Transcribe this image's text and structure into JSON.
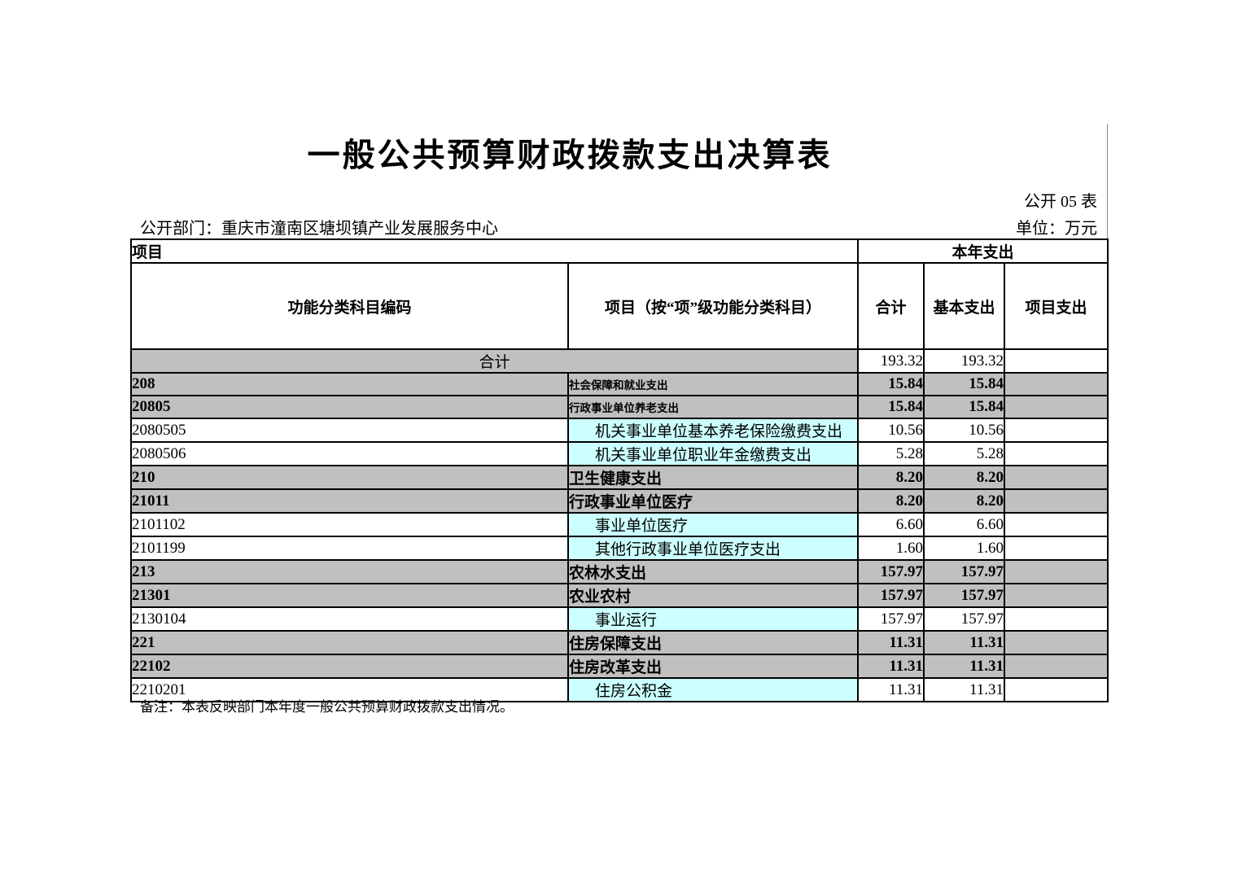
{
  "title": "一般公共预算财政拨款支出决算表",
  "meta": {
    "sheet_label": "公开 05 表",
    "department_label": "公开部门：重庆市潼南区塘坝镇产业发展服务中心",
    "unit_label": "单位：万元"
  },
  "colors": {
    "header_gray": "#c0c0c0",
    "detail_cyan": "#ccffff"
  },
  "table": {
    "header": {
      "item_group": "项目",
      "year_group": "本年支出",
      "col_code": "功能分类科目编码",
      "col_item": "项目（按“项”级功能分类科目）",
      "col_total": "合计",
      "col_basic": "基本支出",
      "col_project": "项目支出"
    },
    "total_row": {
      "label": "合计",
      "total": "193.32",
      "basic": "193.32",
      "project": ""
    },
    "rows": [
      {
        "code": "208",
        "name": "社会保障和就业支出",
        "total": "15.84",
        "basic": "15.84",
        "project": "",
        "type": "section",
        "small": true
      },
      {
        "code": "20805",
        "name": "行政事业单位养老支出",
        "total": "15.84",
        "basic": "15.84",
        "project": "",
        "type": "section",
        "small": true
      },
      {
        "code": "2080505",
        "name": "机关事业单位基本养老保险缴费支出",
        "total": "10.56",
        "basic": "10.56",
        "project": "",
        "type": "detail",
        "small": false
      },
      {
        "code": "2080506",
        "name": "机关事业单位职业年金缴费支出",
        "total": "5.28",
        "basic": "5.28",
        "project": "",
        "type": "detail",
        "small": false
      },
      {
        "code": "210",
        "name": "卫生健康支出",
        "total": "8.20",
        "basic": "8.20",
        "project": "",
        "type": "section",
        "small": false
      },
      {
        "code": "21011",
        "name": "行政事业单位医疗",
        "total": "8.20",
        "basic": "8.20",
        "project": "",
        "type": "section",
        "small": false
      },
      {
        "code": "2101102",
        "name": "事业单位医疗",
        "total": "6.60",
        "basic": "6.60",
        "project": "",
        "type": "detail",
        "small": false
      },
      {
        "code": "2101199",
        "name": "其他行政事业单位医疗支出",
        "total": "1.60",
        "basic": "1.60",
        "project": "",
        "type": "detail",
        "small": false
      },
      {
        "code": "213",
        "name": "农林水支出",
        "total": "157.97",
        "basic": "157.97",
        "project": "",
        "type": "section",
        "small": false
      },
      {
        "code": "21301",
        "name": "农业农村",
        "total": "157.97",
        "basic": "157.97",
        "project": "",
        "type": "section",
        "small": false
      },
      {
        "code": "2130104",
        "name": "事业运行",
        "total": "157.97",
        "basic": "157.97",
        "project": "",
        "type": "detail",
        "small": false
      },
      {
        "code": "221",
        "name": "住房保障支出",
        "total": "11.31",
        "basic": "11.31",
        "project": "",
        "type": "section",
        "small": false
      },
      {
        "code": "22102",
        "name": "住房改革支出",
        "total": "11.31",
        "basic": "11.31",
        "project": "",
        "type": "section",
        "small": false
      },
      {
        "code": "2210201",
        "name": "住房公积金",
        "total": "11.31",
        "basic": "11.31",
        "project": "",
        "type": "detail",
        "small": false
      }
    ]
  },
  "note": "备注：本表反映部门本年度一般公共预算财政拨款支出情况。"
}
